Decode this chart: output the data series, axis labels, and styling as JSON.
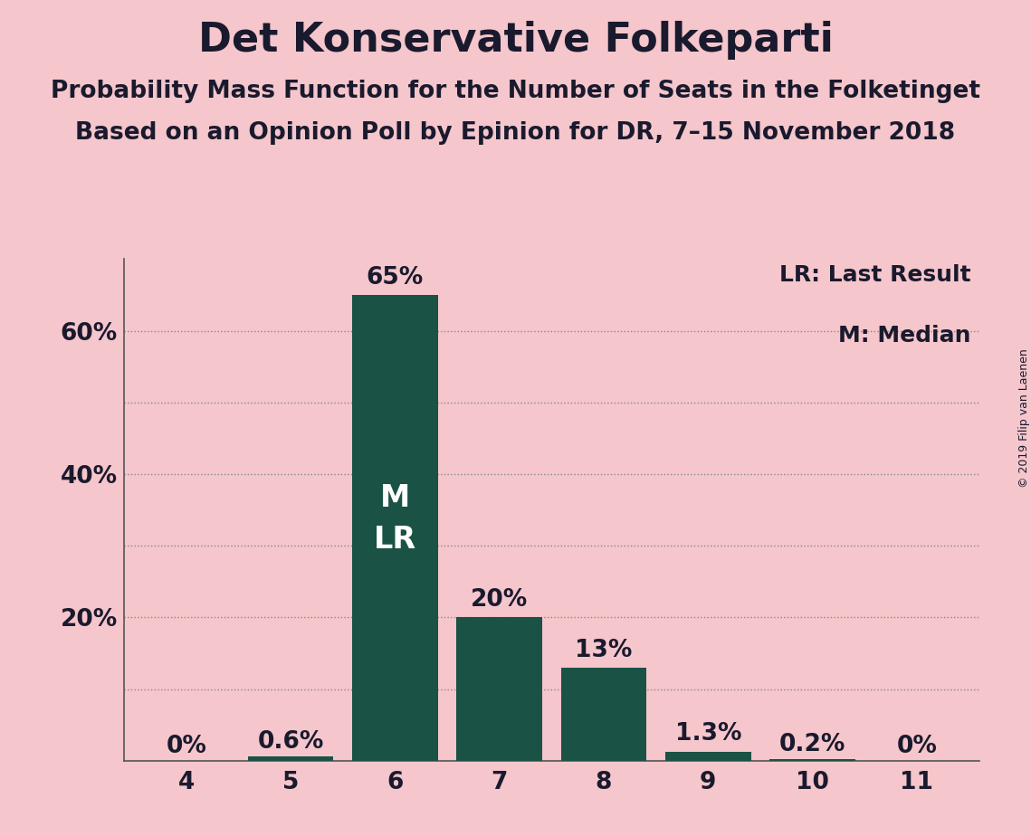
{
  "title": "Det Konservative Folkeparti",
  "subtitle1": "Probability Mass Function for the Number of Seats in the Folketinget",
  "subtitle2": "Based on an Opinion Poll by Epinion for DR, 7–15 November 2018",
  "copyright": "© 2019 Filip van Laenen",
  "categories": [
    4,
    5,
    6,
    7,
    8,
    9,
    10,
    11
  ],
  "values": [
    0.0,
    0.6,
    65.0,
    20.0,
    13.0,
    1.3,
    0.2,
    0.0
  ],
  "labels": [
    "0%",
    "0.6%",
    "65%",
    "20%",
    "13%",
    "1.3%",
    "0.2%",
    "0%"
  ],
  "bar_color": "#1a5245",
  "background_color": "#f5c6cb",
  "median_bar": 6,
  "last_result_bar": 6,
  "legend_text1": "LR: Last Result",
  "legend_text2": "M: Median",
  "text_color": "#1a1a2e",
  "ylim": [
    0,
    70
  ],
  "title_fontsize": 32,
  "subtitle_fontsize": 19,
  "axis_fontsize": 19,
  "bar_label_fontsize": 19,
  "inside_label_fontsize": 24,
  "legend_fontsize": 18,
  "copyright_fontsize": 9
}
